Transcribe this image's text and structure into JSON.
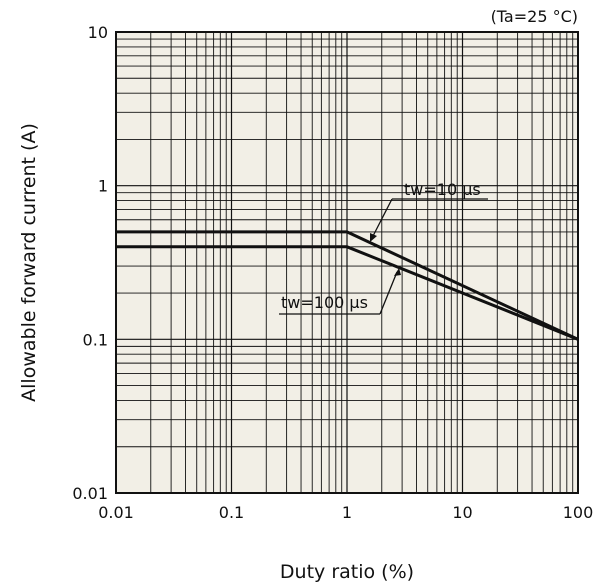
{
  "chart_data": {
    "type": "line",
    "title": "",
    "condition_note": "(Ta=25 °C)",
    "xlabel": "Duty ratio (%)",
    "ylabel": "Allowable forward current (A)",
    "x_scale": "log",
    "y_scale": "log",
    "xlim": [
      0.01,
      100
    ],
    "ylim": [
      0.01,
      10
    ],
    "x_ticks": [
      "0.01",
      "0.1",
      "1",
      "10",
      "100"
    ],
    "y_ticks": [
      "0.01",
      "0.1",
      "1",
      "10"
    ],
    "grid": true,
    "series": [
      {
        "name": "tw=10 μs",
        "x": [
          0.01,
          1,
          100
        ],
        "y": [
          0.5,
          0.5,
          0.1
        ]
      },
      {
        "name": "tw=100 μs",
        "x": [
          0.01,
          1,
          100
        ],
        "y": [
          0.4,
          0.4,
          0.1
        ]
      }
    ],
    "colors": {
      "plot_background": "#f2efe6",
      "line": "#111111",
      "grid": "#111111"
    }
  }
}
